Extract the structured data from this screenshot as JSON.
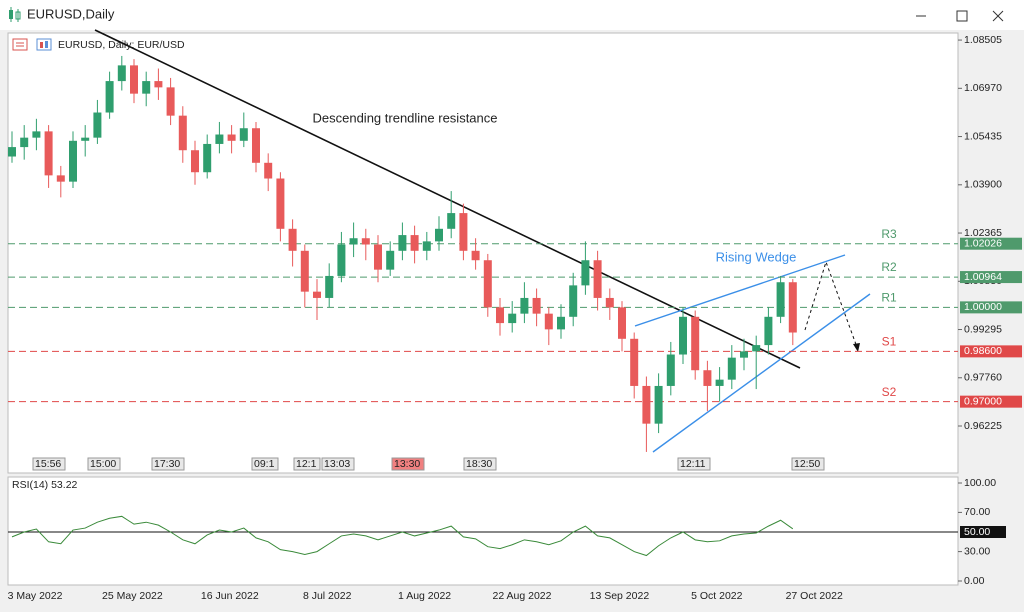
{
  "window": {
    "title": "EURUSD,Daily"
  },
  "chart_data": {
    "type": "candlestick",
    "title": "EURUSD, Daily:  EUR/USD",
    "x_labels": [
      "3 May 2022",
      "25 May 2022",
      "16 Jun 2022",
      "8 Jul 2022",
      "1 Aug 2022",
      "22 Aug 2022",
      "13 Sep 2022",
      "5 Oct 2022",
      "27 Oct 2022"
    ],
    "ohlc": [
      [
        1.048,
        1.056,
        1.046,
        1.051
      ],
      [
        1.051,
        1.058,
        1.047,
        1.054
      ],
      [
        1.054,
        1.06,
        1.05,
        1.056
      ],
      [
        1.056,
        1.058,
        1.038,
        1.042
      ],
      [
        1.042,
        1.045,
        1.035,
        1.04
      ],
      [
        1.04,
        1.056,
        1.038,
        1.053
      ],
      [
        1.053,
        1.058,
        1.048,
        1.054
      ],
      [
        1.054,
        1.066,
        1.052,
        1.062
      ],
      [
        1.062,
        1.075,
        1.06,
        1.072
      ],
      [
        1.072,
        1.08,
        1.069,
        1.077
      ],
      [
        1.077,
        1.079,
        1.065,
        1.068
      ],
      [
        1.068,
        1.075,
        1.064,
        1.072
      ],
      [
        1.072,
        1.076,
        1.066,
        1.07
      ],
      [
        1.07,
        1.073,
        1.058,
        1.061
      ],
      [
        1.061,
        1.064,
        1.046,
        1.05
      ],
      [
        1.05,
        1.053,
        1.039,
        1.043
      ],
      [
        1.043,
        1.055,
        1.041,
        1.052
      ],
      [
        1.052,
        1.059,
        1.049,
        1.055
      ],
      [
        1.055,
        1.058,
        1.049,
        1.053
      ],
      [
        1.053,
        1.062,
        1.051,
        1.057
      ],
      [
        1.057,
        1.059,
        1.043,
        1.046
      ],
      [
        1.046,
        1.049,
        1.037,
        1.041
      ],
      [
        1.041,
        1.043,
        1.021,
        1.025
      ],
      [
        1.025,
        1.028,
        1.013,
        1.018
      ],
      [
        1.018,
        1.02,
        1.0,
        1.005
      ],
      [
        1.005,
        1.009,
        0.996,
        1.003
      ],
      [
        1.003,
        1.014,
        1.0,
        1.01
      ],
      [
        1.01,
        1.024,
        1.008,
        1.02
      ],
      [
        1.02,
        1.027,
        1.016,
        1.022
      ],
      [
        1.022,
        1.025,
        1.015,
        1.02
      ],
      [
        1.02,
        1.023,
        1.008,
        1.012
      ],
      [
        1.012,
        1.021,
        1.01,
        1.018
      ],
      [
        1.018,
        1.027,
        1.015,
        1.023
      ],
      [
        1.023,
        1.026,
        1.014,
        1.018
      ],
      [
        1.018,
        1.024,
        1.015,
        1.021
      ],
      [
        1.021,
        1.029,
        1.018,
        1.025
      ],
      [
        1.025,
        1.037,
        1.022,
        1.03
      ],
      [
        1.03,
        1.033,
        1.015,
        1.018
      ],
      [
        1.018,
        1.022,
        1.012,
        1.015
      ],
      [
        1.015,
        1.017,
        0.997,
        1.0
      ],
      [
        1.0,
        1.003,
        0.991,
        0.995
      ],
      [
        0.995,
        1.002,
        0.992,
        0.998
      ],
      [
        0.998,
        1.008,
        0.995,
        1.003
      ],
      [
        1.003,
        1.006,
        0.994,
        0.998
      ],
      [
        0.998,
        1.0,
        0.988,
        0.993
      ],
      [
        0.993,
        1.001,
        0.99,
        0.997
      ],
      [
        0.997,
        1.011,
        0.994,
        1.007
      ],
      [
        1.007,
        1.021,
        1.004,
        1.015
      ],
      [
        1.015,
        1.018,
        0.999,
        1.003
      ],
      [
        1.003,
        1.006,
        0.996,
        1.0
      ],
      [
        1.0,
        1.002,
        0.986,
        0.99
      ],
      [
        0.99,
        0.992,
        0.971,
        0.975
      ],
      [
        0.975,
        0.978,
        0.954,
        0.963
      ],
      [
        0.963,
        0.979,
        0.96,
        0.975
      ],
      [
        0.975,
        0.989,
        0.972,
        0.985
      ],
      [
        0.985,
        1.0,
        0.982,
        0.997
      ],
      [
        0.997,
        0.999,
        0.977,
        0.98
      ],
      [
        0.98,
        0.983,
        0.967,
        0.975
      ],
      [
        0.975,
        0.981,
        0.97,
        0.977
      ],
      [
        0.977,
        0.988,
        0.974,
        0.984
      ],
      [
        0.984,
        0.99,
        0.98,
        0.986
      ],
      [
        0.986,
        0.991,
        0.974,
        0.988
      ],
      [
        0.988,
        1.0,
        0.985,
        0.997
      ],
      [
        0.997,
        1.01,
        0.995,
        1.008
      ],
      [
        1.008,
        1.009,
        0.988,
        0.992
      ]
    ],
    "up_color": "#2f9e6e",
    "down_color": "#e85a5a",
    "ylim": [
      0.9473,
      1.0873
    ],
    "yticks": [
      {
        "value": 1.08505,
        "label": "1.08505"
      },
      {
        "value": 1.0697,
        "label": "1.06970"
      },
      {
        "value": 1.05435,
        "label": "1.05435"
      },
      {
        "value": 1.039,
        "label": "1.03900"
      },
      {
        "value": 1.02365,
        "label": "1.02365"
      },
      {
        "value": 1.0083,
        "label": "1.00830"
      },
      {
        "value": 0.99295,
        "label": "0.99295"
      },
      {
        "value": 0.9776,
        "label": "0.97760"
      },
      {
        "value": 0.96225,
        "label": "0.96225"
      }
    ],
    "levels": [
      {
        "name": "R3",
        "value": 1.02026,
        "label": "1.02026",
        "color": "#4f9a6c"
      },
      {
        "name": "R2",
        "value": 1.00964,
        "label": "1.00964",
        "color": "#4f9a6c"
      },
      {
        "name": "R1",
        "value": 1.0,
        "label": "1.00000",
        "color": "#4f9a6c"
      },
      {
        "name": "S1",
        "value": 0.986,
        "label": "0.98600",
        "color": "#e04848"
      },
      {
        "name": "S2",
        "value": 0.97,
        "label": "0.97000",
        "color": "#e04848"
      }
    ],
    "annotations": [
      "Descending trendline resistance",
      "Rising Wedge"
    ],
    "time_tags": [
      "15:56",
      "15:00",
      "17:30",
      "09:1",
      "12:1",
      "13:03",
      "13:30",
      "18:30",
      "12:11",
      "12:50"
    ]
  },
  "rsi": {
    "type": "line",
    "title": "RSI(14) 53.22",
    "color": "#3a8a3a",
    "values": [
      45,
      50,
      53,
      40,
      38,
      52,
      54,
      60,
      64,
      66,
      58,
      60,
      57,
      50,
      42,
      38,
      47,
      52,
      50,
      54,
      44,
      40,
      32,
      30,
      27,
      30,
      38,
      46,
      48,
      46,
      42,
      46,
      50,
      46,
      49,
      52,
      56,
      45,
      43,
      35,
      33,
      37,
      42,
      40,
      37,
      41,
      50,
      56,
      46,
      44,
      37,
      30,
      26,
      36,
      44,
      50,
      42,
      40,
      41,
      46,
      48,
      49,
      56,
      62,
      53.22
    ],
    "ylim": [
      0,
      100
    ],
    "yticks": [
      {
        "value": 100,
        "label": "100.00"
      },
      {
        "value": 70,
        "label": "70.00"
      },
      {
        "value": 30,
        "label": "30.00"
      },
      {
        "value": 0,
        "label": "0.00"
      }
    ],
    "level": {
      "value": 50,
      "label": "50.00"
    }
  }
}
